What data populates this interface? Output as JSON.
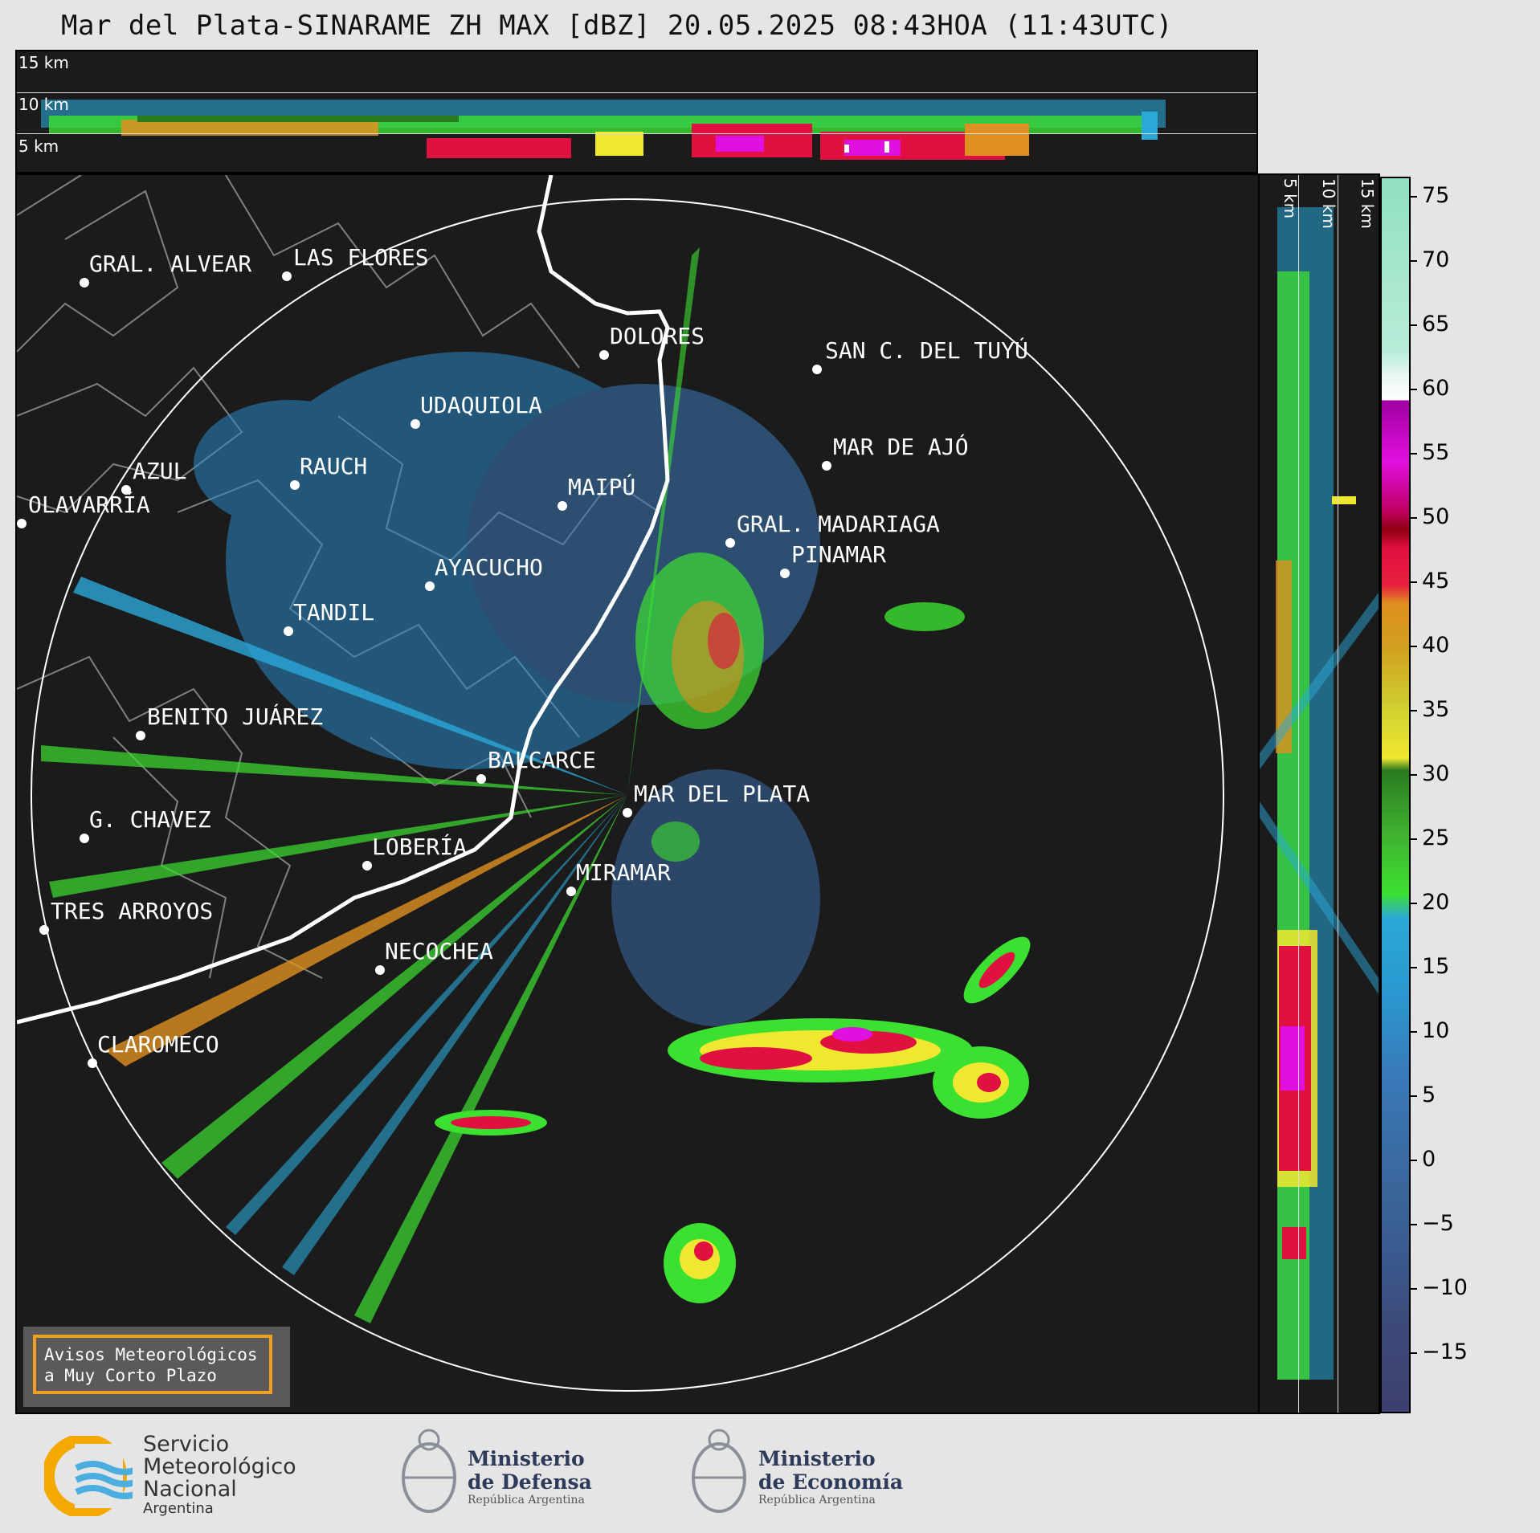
{
  "title": "Mar del Plata-SINARAME ZH MAX [dBZ] 20.05.2025 08:43HOA (11:43UTC)",
  "height_labels": [
    "15 km",
    "10 km",
    "5 km"
  ],
  "cities": [
    {
      "name": "GRAL. ALVEAR",
      "id": "gral-alvear"
    },
    {
      "name": "LAS FLORES",
      "id": "las-flores"
    },
    {
      "name": "DOLORES",
      "id": "dolores"
    },
    {
      "name": "SAN C. DEL TUYÚ",
      "id": "san-c-del-tuyu"
    },
    {
      "name": "UDAQUIOLA",
      "id": "udaquiola"
    },
    {
      "name": "MAR DE AJÓ",
      "id": "mar-de-ajo"
    },
    {
      "name": "AZUL",
      "id": "azul"
    },
    {
      "name": "RAUCH",
      "id": "rauch"
    },
    {
      "name": "OLAVARRÍA",
      "id": "olavarria"
    },
    {
      "name": "MAIPÚ",
      "id": "maipu"
    },
    {
      "name": "GRAL. MADARIAGA",
      "id": "gral-madariaga"
    },
    {
      "name": "PINAMAR",
      "id": "pinamar"
    },
    {
      "name": "AYACUCHO",
      "id": "ayacucho"
    },
    {
      "name": "TANDIL",
      "id": "tandil"
    },
    {
      "name": "BENITO JUÁREZ",
      "id": "benito-juarez"
    },
    {
      "name": "BALCARCE",
      "id": "balcarce"
    },
    {
      "name": "MAR DEL PLATA",
      "id": "mar-del-plata"
    },
    {
      "name": "G. CHAVEZ",
      "id": "g-chavez"
    },
    {
      "name": "LOBERÍA",
      "id": "loberia"
    },
    {
      "name": "MIRAMAR",
      "id": "miramar"
    },
    {
      "name": "TRES ARROYOS",
      "id": "tres-arroyos"
    },
    {
      "name": "NECOCHEA",
      "id": "necochea"
    },
    {
      "name": "CLAROMECO",
      "id": "claromeco"
    }
  ],
  "colorbar": {
    "unit": "dBZ",
    "ticks": [
      "75",
      "70",
      "65",
      "60",
      "55",
      "50",
      "45",
      "40",
      "35",
      "30",
      "25",
      "20",
      "15",
      "10",
      "5",
      "0",
      "−5",
      "−10",
      "−15"
    ],
    "colors": {
      "low": "#3d3f6e",
      "blue": "#3a78b8",
      "cyan": "#2aa8d8",
      "green": "#3ce030",
      "darkgreen": "#2a7a20",
      "yellow": "#f0e830",
      "orange": "#e09020",
      "red": "#e01040",
      "darkred": "#900010",
      "magenta": "#e010e0",
      "white": "#ffffff",
      "mint": "#90e0c0"
    }
  },
  "aviso": {
    "line1": "Avisos Meteorológicos",
    "line2": "a Muy Corto Plazo"
  },
  "logos": {
    "smn": {
      "line1": "Servicio",
      "line2": "Meteorológico",
      "line3": "Nacional",
      "line4": "Argentina"
    },
    "defensa": {
      "line1": "Ministerio",
      "line2": "de Defensa",
      "line3": "República Argentina"
    },
    "economia": {
      "line1": "Ministerio",
      "line2": "de Economía",
      "line3": "República Argentina"
    }
  }
}
